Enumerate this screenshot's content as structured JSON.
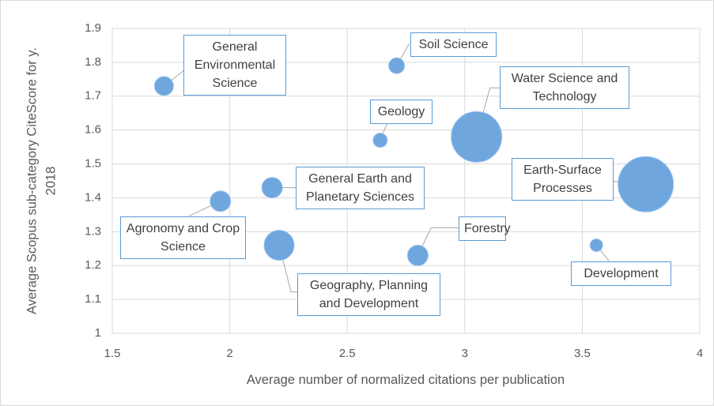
{
  "chart_data": {
    "type": "bubble",
    "xlabel": "Average number of normalized citations per publication",
    "ylabel": "Average Scopus sub-category CiteScore for y. 2018",
    "labels": [
      "General Environmental Science",
      "Soil Science",
      "Geology",
      "Water Science and Technology",
      "General Earth and Planetary Sciences",
      "Earth-Surface Processes",
      "Agronomy and Crop Science",
      "Geography, Planning and Development",
      "Forestry",
      "Development"
    ],
    "x": [
      1.72,
      2.71,
      2.64,
      3.05,
      2.18,
      3.77,
      1.96,
      2.21,
      2.8,
      3.56
    ],
    "values": [
      1.73,
      1.79,
      1.57,
      1.58,
      1.43,
      1.44,
      1.39,
      1.26,
      1.23,
      1.26
    ],
    "sizes": [
      1.44,
      1.0,
      0.81,
      10.24,
      1.69,
      12.25,
      1.69,
      3.61,
      1.69,
      0.64
    ],
    "color": "#6fa6de",
    "xlim": [
      1.5,
      4
    ],
    "xticks": [
      1.5,
      2,
      2.5,
      3,
      3.5,
      4
    ],
    "ylim": [
      1,
      1.9
    ],
    "yticks": [
      1,
      1.1,
      1.2,
      1.3,
      1.4,
      1.5,
      1.6,
      1.7,
      1.8,
      1.9
    ],
    "grid": true
  }
}
